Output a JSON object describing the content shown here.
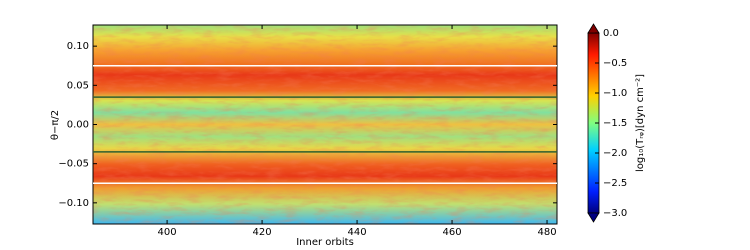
{
  "chart_data": {
    "type": "heatmap",
    "x_label": "Inner orbits",
    "y_label": "θ−π/2",
    "xlim": [
      384.4,
      482.1
    ],
    "xticks": [
      400,
      420,
      440,
      460,
      480
    ],
    "ylim": [
      -0.127,
      0.127
    ],
    "yticks": [
      {
        "value": 0.1,
        "label": "0.10"
      },
      {
        "value": 0.05,
        "label": "0.05"
      },
      {
        "value": 0,
        "label": "0.00"
      },
      {
        "value": -0.05,
        "label": "−0.05"
      },
      {
        "value": -0.1,
        "label": "−0.10"
      }
    ],
    "hlines": [
      {
        "value": 0.075,
        "color": "#ffffff"
      },
      {
        "value": 0.035,
        "color": "#2f5f2f"
      },
      {
        "value": -0.035,
        "color": "#2f5f2f"
      },
      {
        "value": -0.075,
        "color": "#ffffff"
      }
    ],
    "colorbar": {
      "label": "log₁₀(Tᵣᵩ)[dyn cm⁻²]",
      "lim": [
        -3.0,
        0.0
      ],
      "ticks": [
        {
          "value": 0,
          "label": "0.0"
        },
        {
          "value": -0.5,
          "label": "−0.5"
        },
        {
          "value": -1,
          "label": "−1.0"
        },
        {
          "value": -1.5,
          "label": "−1.5"
        },
        {
          "value": -2,
          "label": "−2.0"
        },
        {
          "value": -2.5,
          "label": "−2.5"
        },
        {
          "value": -3,
          "label": "−3.0"
        }
      ]
    }
  }
}
